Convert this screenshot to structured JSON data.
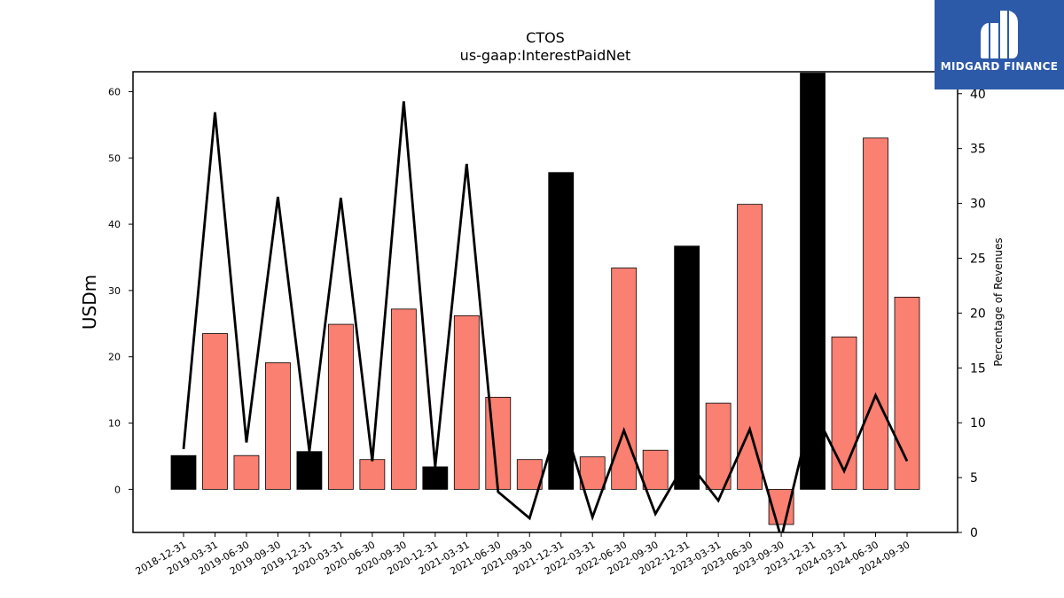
{
  "chart_data": {
    "type": "bar",
    "title": "CTOS",
    "subtitle": "us-gaap:InterestPaidNet",
    "ylabel": "USDm",
    "y2label": "Percentage of Revenues",
    "ylim": [
      -6.5,
      63
    ],
    "y2lim": [
      0,
      42
    ],
    "yticks": [
      0,
      10,
      20,
      30,
      40,
      50,
      60
    ],
    "y2ticks": [
      0,
      5,
      10,
      15,
      20,
      25,
      30,
      35,
      40
    ],
    "categories": [
      "2018-12-31",
      "2019-03-31",
      "2019-06-30",
      "2019-09-30",
      "2019-12-31",
      "2020-03-31",
      "2020-06-30",
      "2020-09-30",
      "2020-12-31",
      "2021-03-31",
      "2021-06-30",
      "2021-09-30",
      "2021-12-31",
      "2022-03-31",
      "2022-06-30",
      "2022-09-30",
      "2022-12-31",
      "2023-03-31",
      "2023-06-30",
      "2023-09-30",
      "2023-12-31",
      "2024-03-31",
      "2024-06-30",
      "2024-09-30"
    ],
    "series": [
      {
        "values": [
          5.1,
          23.5,
          5.1,
          19.1,
          5.7,
          24.9,
          4.5,
          27.2,
          3.4,
          26.2,
          13.9,
          4.5,
          47.8,
          4.9,
          33.4,
          5.9,
          36.7,
          13.0,
          43.0,
          -5.3,
          62.8,
          23.0,
          53.0,
          29.0
        ],
        "is_annual": [
          true,
          false,
          false,
          false,
          true,
          false,
          false,
          false,
          true,
          false,
          false,
          false,
          true,
          false,
          false,
          false,
          true,
          false,
          false,
          false,
          true,
          false,
          false,
          false
        ]
      },
      {
        "values": [
          7.6,
          38.3,
          8.2,
          30.6,
          7.4,
          30.5,
          6.5,
          39.3,
          6.0,
          33.6,
          3.7,
          1.3,
          10.8,
          1.4,
          9.3,
          1.7,
          6.6,
          2.9,
          9.4,
          -0.5,
          11.4,
          5.6,
          12.5,
          6.5
        ]
      }
    ],
    "colors": {
      "quarter_bar": "#fa8072",
      "annual_bar": "#000000",
      "line": "#000000"
    },
    "grid": false,
    "legend": "none"
  },
  "brand": {
    "name": "MIDGARD FINANCE",
    "color": "#2c5aa8"
  }
}
